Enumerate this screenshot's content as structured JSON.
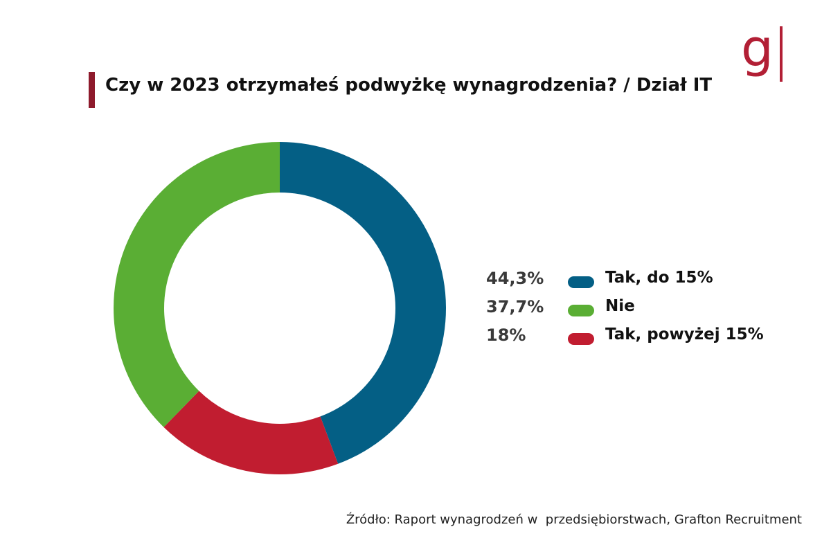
{
  "logo": {
    "text": "g",
    "color": "#b21f35"
  },
  "title": "Czy w 2023 otrzymałeś podwyżkę wynagrodzenia? / Dział IT",
  "chart_data": {
    "type": "pie",
    "donut": true,
    "title": "Czy w 2023 otrzymałeś podwyżkę wynagrodzenia? / Dział IT",
    "categories": [
      "Tak, do 15%",
      "Nie",
      "Tak, powyżej 15%"
    ],
    "values": [
      44.3,
      37.7,
      18
    ],
    "value_labels": [
      "44,3%",
      "37,7%",
      "18%"
    ],
    "colors": [
      "#045f85",
      "#5aae34",
      "#c11d30"
    ],
    "slice_order": [
      "Tak, do 15%",
      "Tak, powyżej 15%",
      "Nie"
    ],
    "start_angle": "12 o'clock, clockwise",
    "legend": "right"
  },
  "source": "Źródło: Raport wynagrodzeń w  przedsiębiorstwach, Grafton Recruitment"
}
